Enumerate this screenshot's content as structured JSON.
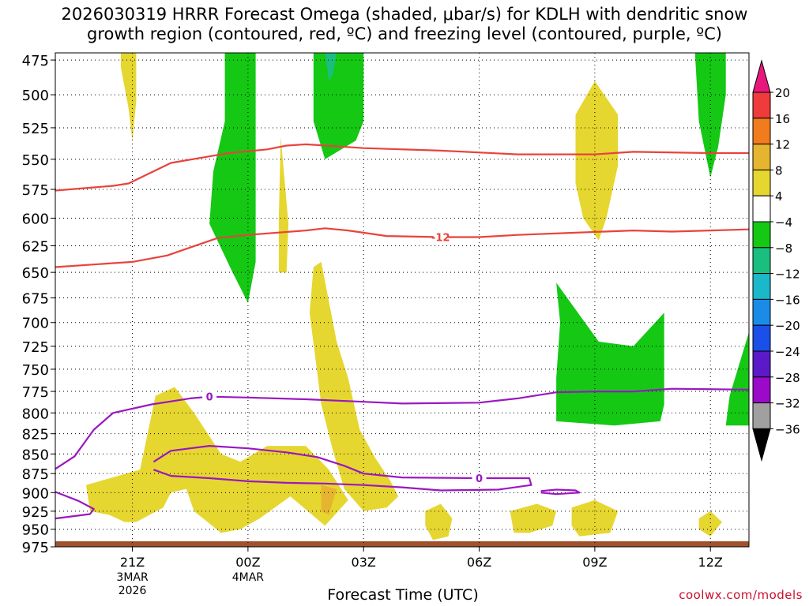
{
  "chart_data": {
    "type": "heatmap",
    "title": "2026030319 HRRR Forecast Omega (shaded, μbar/s) for KDLH with dendritic snow\ngrowth region (contoured, red, ºC) and freezing level (contoured, purple, ºC)",
    "xlabel": "Forecast Time (UTC)",
    "ylabel": "",
    "credit": "coolwx.com/models",
    "x_ticks": [
      {
        "hour": 2,
        "label": "21Z",
        "sub": [
          "3MAR",
          "2026"
        ]
      },
      {
        "hour": 5,
        "label": "00Z",
        "sub": [
          "4MAR"
        ]
      },
      {
        "hour": 8,
        "label": "03Z",
        "sub": []
      },
      {
        "hour": 11,
        "label": "06Z",
        "sub": []
      },
      {
        "hour": 14,
        "label": "09Z",
        "sub": []
      },
      {
        "hour": 17,
        "label": "12Z",
        "sub": []
      }
    ],
    "xlim_hours": [
      0,
      18
    ],
    "y_ticks": [
      475,
      500,
      525,
      550,
      575,
      600,
      625,
      650,
      675,
      700,
      725,
      750,
      775,
      800,
      825,
      850,
      875,
      900,
      925,
      950,
      975
    ],
    "ylim_mb": [
      470,
      975
    ],
    "y_scale": "log-pressure",
    "grid": true,
    "colorbar": {
      "labels": [
        "20",
        "16",
        "12",
        "8",
        "4",
        "−4",
        "−8",
        "−12",
        "−16",
        "−20",
        "−24",
        "−28",
        "−32",
        "−36"
      ],
      "bands": [
        {
          "min": 20,
          "max": 99,
          "color": "#e8177c"
        },
        {
          "min": 16,
          "max": 20,
          "color": "#ef3b3b"
        },
        {
          "min": 12,
          "max": 16,
          "color": "#f07c1e"
        },
        {
          "min": 8,
          "max": 12,
          "color": "#e6b530"
        },
        {
          "min": 4,
          "max": 8,
          "color": "#e6d630"
        },
        {
          "min": -4,
          "max": 4,
          "color": "#ffffff"
        },
        {
          "min": -8,
          "max": -4,
          "color": "#14c814"
        },
        {
          "min": -12,
          "max": -8,
          "color": "#1abf80"
        },
        {
          "min": -16,
          "max": -12,
          "color": "#1ab8c8"
        },
        {
          "min": -20,
          "max": -16,
          "color": "#1a8ce8"
        },
        {
          "min": -24,
          "max": -20,
          "color": "#1a50e8"
        },
        {
          "min": -28,
          "max": -24,
          "color": "#5a1ac8"
        },
        {
          "min": -32,
          "max": -28,
          "color": "#9a0ac8"
        },
        {
          "min": -36,
          "max": -32,
          "color": "#a0a0a0"
        },
        {
          "min": -99,
          "max": -36,
          "color": "#000000"
        }
      ]
    },
    "omega_regions": [
      {
        "color": "#e6d630",
        "points": [
          [
            1.7,
            470
          ],
          [
            2.1,
            470
          ],
          [
            2.1,
            505
          ],
          [
            2.0,
            535
          ],
          [
            1.9,
            510
          ],
          [
            1.7,
            480
          ]
        ]
      },
      {
        "color": "#e6d630",
        "points": [
          [
            0.8,
            890
          ],
          [
            2.2,
            870
          ],
          [
            2.6,
            780
          ],
          [
            3.1,
            770
          ],
          [
            3.6,
            800
          ],
          [
            4.3,
            850
          ],
          [
            4.8,
            860
          ],
          [
            5.5,
            840
          ],
          [
            6.5,
            840
          ],
          [
            7.1,
            870
          ],
          [
            7.6,
            910
          ],
          [
            7.0,
            945
          ],
          [
            6.1,
            905
          ],
          [
            5.3,
            935
          ],
          [
            4.8,
            950
          ],
          [
            4.3,
            955
          ],
          [
            3.6,
            925
          ],
          [
            3.4,
            895
          ],
          [
            3.0,
            900
          ],
          [
            2.8,
            920
          ],
          [
            2.1,
            940
          ],
          [
            1.8,
            940
          ],
          [
            1.4,
            930
          ],
          [
            0.9,
            925
          ]
        ]
      },
      {
        "color": "#e6d630",
        "points": [
          [
            6.7,
            645
          ],
          [
            6.9,
            640
          ],
          [
            7.3,
            720
          ],
          [
            7.6,
            760
          ],
          [
            7.9,
            820
          ],
          [
            8.3,
            855
          ],
          [
            8.7,
            885
          ],
          [
            8.9,
            905
          ],
          [
            8.6,
            920
          ],
          [
            8.0,
            925
          ],
          [
            7.5,
            895
          ],
          [
            7.2,
            845
          ],
          [
            6.9,
            790
          ],
          [
            6.6,
            690
          ]
        ]
      },
      {
        "color": "#e6b530",
        "points": [
          [
            6.9,
            890
          ],
          [
            7.3,
            895
          ],
          [
            7.1,
            930
          ],
          [
            6.9,
            925
          ]
        ]
      },
      {
        "color": "#e6d630",
        "points": [
          [
            5.85,
            532
          ],
          [
            6.05,
            605
          ],
          [
            6.0,
            650
          ],
          [
            5.8,
            650
          ],
          [
            5.8,
            600
          ]
        ]
      },
      {
        "color": "#e6d630",
        "points": [
          [
            13.5,
            515
          ],
          [
            14.0,
            490
          ],
          [
            14.6,
            515
          ],
          [
            14.6,
            555
          ],
          [
            14.3,
            600
          ],
          [
            14.1,
            620
          ],
          [
            13.7,
            600
          ],
          [
            13.5,
            570
          ]
        ]
      },
      {
        "color": "#e6d630",
        "points": [
          [
            9.6,
            925
          ],
          [
            10.0,
            915
          ],
          [
            10.3,
            935
          ],
          [
            10.2,
            960
          ],
          [
            9.8,
            965
          ],
          [
            9.6,
            945
          ]
        ]
      },
      {
        "color": "#e6d630",
        "points": [
          [
            11.8,
            925
          ],
          [
            12.5,
            915
          ],
          [
            13.0,
            925
          ],
          [
            12.9,
            945
          ],
          [
            12.3,
            955
          ],
          [
            11.9,
            955
          ]
        ]
      },
      {
        "color": "#e6d630",
        "points": [
          [
            13.4,
            920
          ],
          [
            14.0,
            910
          ],
          [
            14.6,
            925
          ],
          [
            14.4,
            955
          ],
          [
            13.6,
            960
          ],
          [
            13.4,
            945
          ]
        ]
      },
      {
        "color": "#e6d630",
        "points": [
          [
            16.7,
            935
          ],
          [
            17.0,
            925
          ],
          [
            17.3,
            940
          ],
          [
            17.0,
            960
          ],
          [
            16.7,
            950
          ]
        ]
      },
      {
        "color": "#14c814",
        "points": [
          [
            4.4,
            470
          ],
          [
            5.2,
            470
          ],
          [
            5.2,
            560
          ],
          [
            5.2,
            640
          ],
          [
            5.0,
            680
          ],
          [
            4.6,
            650
          ],
          [
            4.0,
            605
          ],
          [
            4.1,
            560
          ],
          [
            4.4,
            520
          ]
        ]
      },
      {
        "color": "#14c814",
        "points": [
          [
            6.7,
            470
          ],
          [
            8.0,
            470
          ],
          [
            8.0,
            520
          ],
          [
            7.8,
            535
          ],
          [
            7.0,
            550
          ],
          [
            6.7,
            520
          ]
        ]
      },
      {
        "color": "#1abf80",
        "points": [
          [
            7.0,
            470
          ],
          [
            7.3,
            470
          ],
          [
            7.2,
            485
          ],
          [
            7.1,
            490
          ]
        ]
      },
      {
        "color": "#14c814",
        "points": [
          [
            13.0,
            660
          ],
          [
            14.1,
            720
          ],
          [
            15.0,
            725
          ],
          [
            15.8,
            690
          ],
          [
            15.8,
            790
          ],
          [
            15.7,
            810
          ],
          [
            14.5,
            815
          ],
          [
            13.0,
            810
          ],
          [
            13.0,
            760
          ],
          [
            13.1,
            700
          ]
        ]
      },
      {
        "color": "#14c814",
        "points": [
          [
            16.6,
            470
          ],
          [
            17.4,
            470
          ],
          [
            17.4,
            500
          ],
          [
            17.2,
            540
          ],
          [
            17.0,
            565
          ],
          [
            16.7,
            520
          ]
        ]
      },
      {
        "color": "#14c814",
        "points": [
          [
            18.0,
            710
          ],
          [
            18.0,
            815
          ],
          [
            17.4,
            815
          ],
          [
            17.5,
            780
          ]
        ]
      }
    ],
    "dgz_contours": [
      {
        "label": "",
        "points": [
          [
            0,
            576
          ],
          [
            1.5,
            572
          ],
          [
            1.9,
            570
          ],
          [
            3.0,
            553
          ],
          [
            4.5,
            545
          ],
          [
            5.5,
            542
          ],
          [
            6.0,
            539
          ],
          [
            6.5,
            538
          ],
          [
            8.0,
            541
          ],
          [
            10.0,
            543
          ],
          [
            12.0,
            546
          ],
          [
            14.0,
            546
          ],
          [
            15.0,
            544
          ],
          [
            17.0,
            545
          ],
          [
            18.0,
            545
          ]
        ]
      },
      {
        "label": "-12",
        "label_hour": 10.0,
        "points": [
          [
            0,
            645
          ],
          [
            2.0,
            640
          ],
          [
            2.9,
            634
          ],
          [
            4.2,
            618
          ],
          [
            5.0,
            615
          ],
          [
            6.5,
            611
          ],
          [
            7.0,
            609
          ],
          [
            7.6,
            611
          ],
          [
            8.6,
            616
          ],
          [
            10.0,
            617
          ],
          [
            11.0,
            617
          ],
          [
            12.0,
            615
          ],
          [
            13.5,
            613
          ],
          [
            15.0,
            611
          ],
          [
            16.0,
            612
          ],
          [
            17.0,
            611
          ],
          [
            18.0,
            610
          ]
        ]
      }
    ],
    "freezing_contours": [
      {
        "label": "0",
        "label_hour": 4.0,
        "points": [
          [
            0,
            869
          ],
          [
            0.5,
            853
          ],
          [
            1.0,
            820
          ],
          [
            1.5,
            800
          ],
          [
            2.5,
            790
          ],
          [
            3.5,
            783
          ],
          [
            4.0,
            781
          ],
          [
            5.0,
            782
          ],
          [
            6.5,
            784
          ],
          [
            8.0,
            787
          ],
          [
            9.0,
            789
          ],
          [
            11.0,
            788
          ],
          [
            12.0,
            783
          ],
          [
            13.0,
            776
          ],
          [
            14.0,
            775
          ],
          [
            15.0,
            775
          ],
          [
            16.0,
            772
          ],
          [
            18.0,
            773
          ]
        ]
      },
      {
        "label": "0",
        "label_hour": 11.0,
        "points": [
          [
            2.55,
            860
          ],
          [
            3.0,
            846
          ],
          [
            4.0,
            840
          ],
          [
            5.0,
            843
          ],
          [
            6.0,
            848
          ],
          [
            6.8,
            854
          ],
          [
            7.5,
            865
          ],
          [
            8.0,
            875
          ],
          [
            9.0,
            880
          ],
          [
            11.0,
            881
          ],
          [
            12.3,
            881
          ],
          [
            12.35,
            890
          ],
          [
            11.5,
            896
          ],
          [
            10.0,
            897
          ],
          [
            9.0,
            893
          ],
          [
            8.0,
            890
          ],
          [
            7.0,
            888
          ],
          [
            6.0,
            887
          ],
          [
            5.0,
            885
          ],
          [
            4.0,
            881
          ],
          [
            3.0,
            878
          ],
          [
            2.55,
            870
          ]
        ]
      },
      {
        "label": "",
        "points": [
          [
            12.6,
            898
          ],
          [
            13.0,
            896
          ],
          [
            13.5,
            897
          ],
          [
            13.6,
            900
          ],
          [
            13.0,
            902
          ],
          [
            12.6,
            900
          ]
        ]
      },
      {
        "label": "",
        "points": [
          [
            0,
            899
          ],
          [
            0.6,
            911
          ],
          [
            1.0,
            922
          ],
          [
            0.9,
            929
          ],
          [
            0,
            935
          ]
        ]
      }
    ],
    "surface_bar": {
      "color": "#a0522d",
      "p_top": 967,
      "p_bottom": 975
    }
  }
}
